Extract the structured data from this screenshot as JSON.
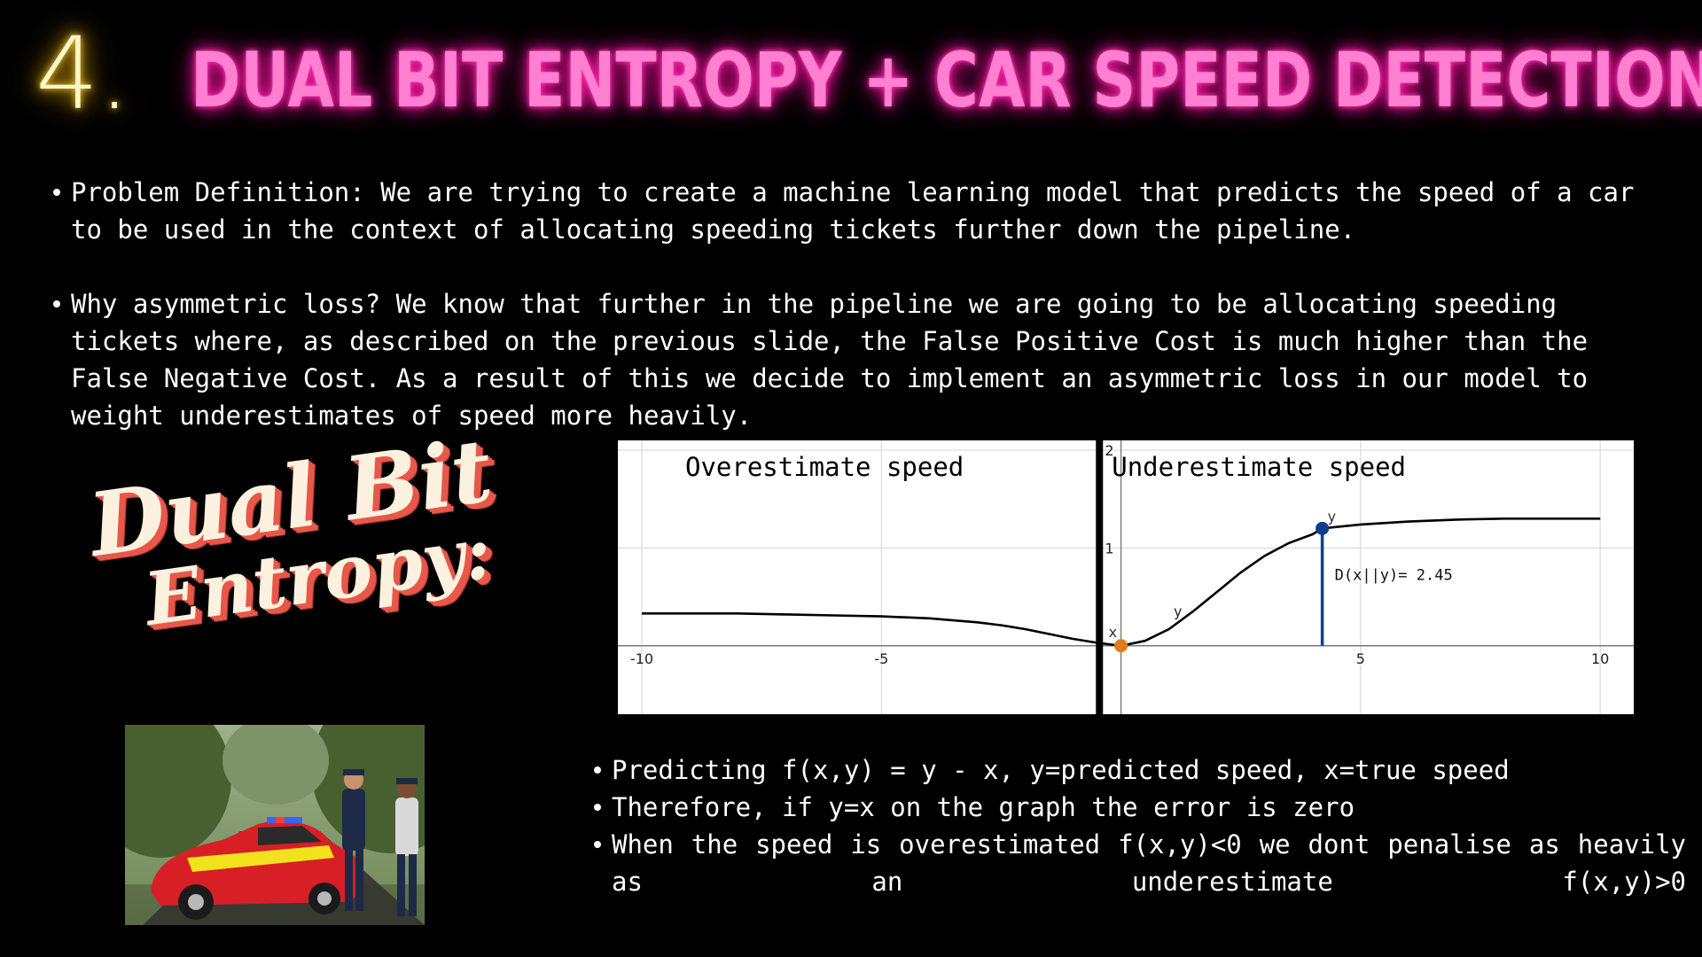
{
  "slide": {
    "number": "4.",
    "title": "DUAL BIT ENTROPY + CAR SPEED DETECTION"
  },
  "bullets_top": [
    "Problem Definition: We are trying to create a machine learning model that predicts the speed of a car to be used in the context of allocating speeding tickets further down the pipeline.",
    "Why asymmetric loss? We know that further in the pipeline we are going to be allocating speeding tickets where, as described on the previous slide, the False Positive Cost is much higher than the False Negative Cost. As a result of this we decide to implement an asymmetric loss in our model to weight underestimates of speed more heavily."
  ],
  "brand": {
    "line1": "Dual Bit",
    "line2": "Entropy:"
  },
  "photo": {
    "icon": "car-with-police-officers-image",
    "car_colors": [
      "#d81f25",
      "#f2e21e"
    ],
    "uniform_color": "#1c2a46",
    "road_color": "#3d3b38",
    "tree_color": "#48602f"
  },
  "bullets_bottom": [
    "Predicting f(x,y) = y - x, y=predicted speed, x=true speed",
    "Therefore, if y=x on the graph the error is zero",
    "When the speed is overestimated f(x,y)<0 we dont penalise as heavily as an underestimate f(x,y)>0"
  ],
  "chart_data": {
    "type": "line",
    "title": "",
    "xlabel": "",
    "ylabel": "",
    "xlim": [
      -10.5,
      10.7
    ],
    "ylim": [
      -0.7,
      2.1
    ],
    "xticks": [
      "-10",
      "-5",
      "5",
      "10"
    ],
    "yticks": [
      "1",
      "2"
    ],
    "regions": {
      "left": "Overestimate speed",
      "right": "Underestimate speed"
    },
    "grid": true,
    "series": [
      {
        "name": "",
        "color": "#000000",
        "x": [
          -10,
          -9,
          -8,
          -7,
          -6,
          -5,
          -4,
          -3,
          -2.5,
          -2,
          -1.5,
          -1,
          -0.5,
          0,
          0.5,
          1,
          1.5,
          2,
          2.5,
          3,
          3.5,
          4,
          4.2,
          5,
          6,
          7,
          8,
          9,
          10
        ],
        "y": [
          0.33,
          0.33,
          0.33,
          0.32,
          0.31,
          0.3,
          0.28,
          0.24,
          0.21,
          0.17,
          0.12,
          0.07,
          0.03,
          0.0,
          0.05,
          0.17,
          0.35,
          0.55,
          0.75,
          0.92,
          1.05,
          1.14,
          1.2,
          1.24,
          1.27,
          1.29,
          1.3,
          1.3,
          1.3
        ]
      }
    ],
    "points": [
      {
        "label": "x",
        "x": 0,
        "y": 0,
        "color": "#e07b1e"
      },
      {
        "label": "y",
        "x": 4.2,
        "y": 1.2,
        "color": "#0d3f8f"
      }
    ],
    "curve_label": {
      "text": "y",
      "x": 1.1,
      "y": 0.3
    },
    "divergence": {
      "label": "D(x||y)= 2.45",
      "x": 4.2,
      "y": 1.2,
      "color": "#0d3f8f"
    }
  }
}
